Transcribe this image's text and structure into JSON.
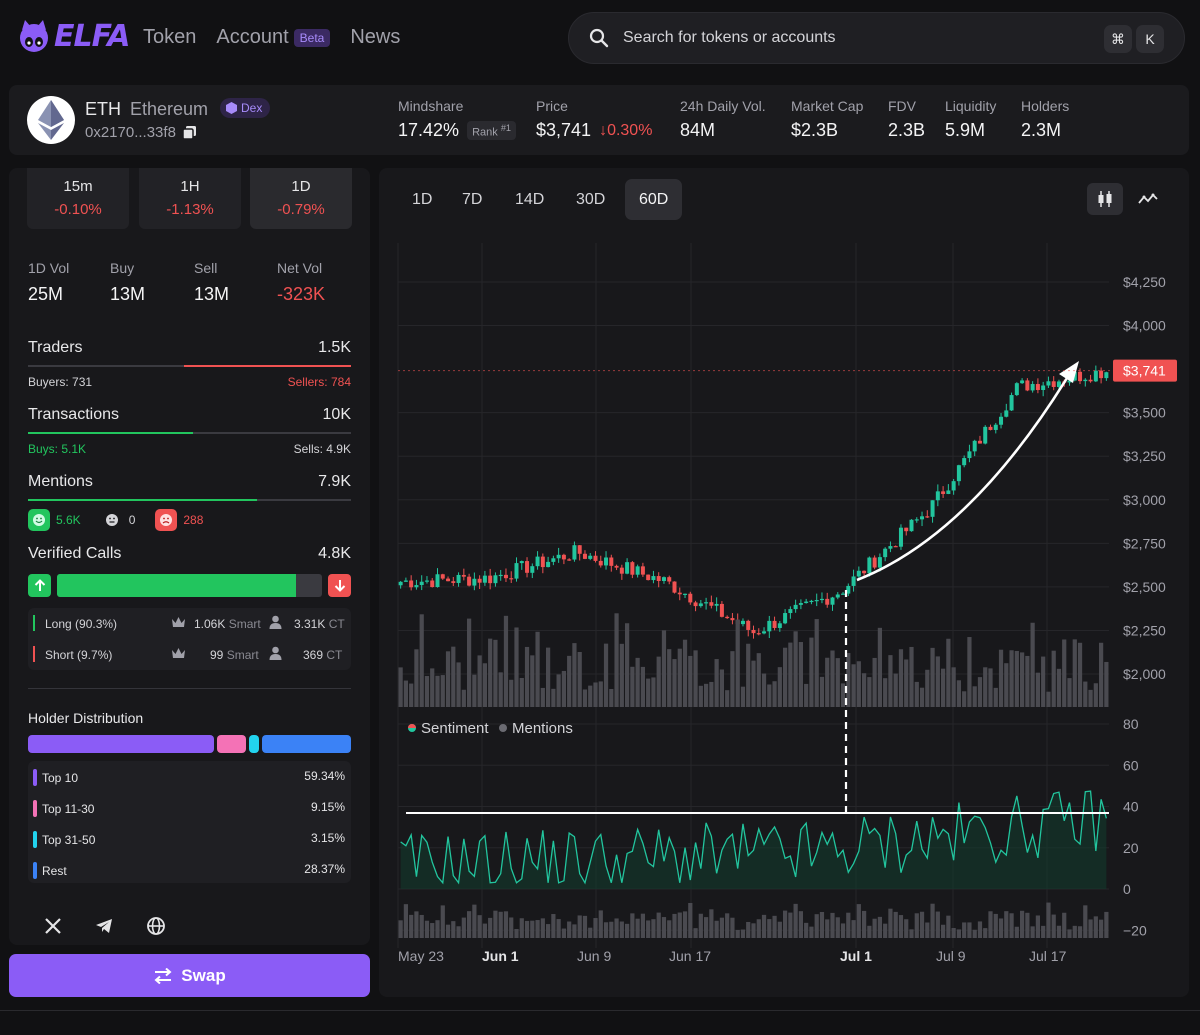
{
  "header": {
    "logo_text": "ELFA",
    "nav": [
      {
        "label": "Token"
      },
      {
        "label": "Account",
        "badge": "Beta"
      },
      {
        "label": "News"
      }
    ],
    "search": {
      "placeholder": "Search for tokens or accounts",
      "shortcut": [
        "⌘",
        "K"
      ]
    }
  },
  "token": {
    "symbol": "ETH",
    "name": "Ethereum",
    "badge": "Dex",
    "address": "0x2170...33f8",
    "stats": [
      {
        "label": "Mindshare",
        "value": "17.42%",
        "rank_label": "Rank",
        "rank": "#1"
      },
      {
        "label": "Price",
        "value": "$3,741",
        "change": "0.30%"
      },
      {
        "label": "24h Daily Vol.",
        "value": "84M"
      },
      {
        "label": "Market Cap",
        "value": "$2.3B"
      },
      {
        "label": "FDV",
        "value": "2.3B"
      },
      {
        "label": "Liquidity",
        "value": "5.9M"
      },
      {
        "label": "Holders",
        "value": "2.3M"
      }
    ]
  },
  "left": {
    "timeframes": [
      {
        "label": "15m",
        "value": "-0.10%"
      },
      {
        "label": "1H",
        "value": "-1.13%"
      },
      {
        "label": "1D",
        "value": "-0.79%"
      }
    ],
    "volume": [
      {
        "label": "1D Vol",
        "value": "25M"
      },
      {
        "label": "Buy",
        "value": "13M"
      },
      {
        "label": "Sell",
        "value": "13M"
      },
      {
        "label": "Net Vol",
        "value": "-323K"
      }
    ],
    "traders": {
      "label": "Traders",
      "value": "1.5K",
      "buyers": "Buyers: 731",
      "sellers": "Sellers: 784",
      "buy_fraction": 0.483
    },
    "transactions": {
      "label": "Transactions",
      "value": "10K",
      "buys": "Buys: 5.1K",
      "sells": "Sells: 4.9K",
      "buy_fraction": 0.51
    },
    "mentions": {
      "label": "Mentions",
      "value": "7.9K",
      "positive": "5.6K",
      "neutral": "0",
      "negative": "288",
      "positive_fraction": 0.71
    },
    "verified_calls": {
      "label": "Verified Calls",
      "value": "4.8K",
      "long_fraction": 0.903,
      "rows": [
        {
          "label": "Long (90.3%)",
          "smart": "1.06K",
          "smart_label": "Smart",
          "ct": "3.31K",
          "ct_label": "CT",
          "color": "#22c55e"
        },
        {
          "label": "Short (9.7%)",
          "smart": "99",
          "smart_label": "Smart",
          "ct": "369",
          "ct_label": "CT",
          "color": "#f05252"
        }
      ]
    },
    "holders": {
      "title": "Holder Distribution",
      "rows": [
        {
          "label": "Top 10",
          "value": "59.34%",
          "color": "#8b5cf6",
          "fraction": 0.5934
        },
        {
          "label": "Top 11-30",
          "value": "9.15%",
          "color": "#f472b6",
          "fraction": 0.0915
        },
        {
          "label": "Top 31-50",
          "value": "3.15%",
          "color": "#22d3ee",
          "fraction": 0.0315
        },
        {
          "label": "Rest",
          "value": "28.37%",
          "color": "#3b82f6",
          "fraction": 0.2837
        }
      ]
    },
    "swap_label": "Swap"
  },
  "chart": {
    "ranges": [
      "1D",
      "7D",
      "14D",
      "30D",
      "60D"
    ],
    "active_range": "60D",
    "price_ticks": [
      "$4,250",
      "$4,000",
      "$3,500",
      "$3,250",
      "$3,000",
      "$2,750",
      "$2,500",
      "$2,250",
      "$2,000"
    ],
    "sentiment_ticks": [
      "80",
      "60",
      "40",
      "20",
      "0",
      "−20"
    ],
    "x_ticks": [
      {
        "label": "May 23",
        "bold": false
      },
      {
        "label": "Jun 1",
        "bold": true
      },
      {
        "label": "Jun 9",
        "bold": false
      },
      {
        "label": "Jun 17",
        "bold": false
      },
      {
        "label": "Jul 1",
        "bold": true
      },
      {
        "label": "Jul 9",
        "bold": false
      },
      {
        "label": "Jul 17",
        "bold": false
      }
    ],
    "current_price_label": "$3,741",
    "legend": [
      {
        "label": "Sentiment"
      },
      {
        "label": "Mentions"
      }
    ],
    "colors": {
      "up": "#22c59e",
      "down": "#f05252",
      "accent": "#8b5cf6"
    }
  },
  "chart_data": {
    "type": "candlestick",
    "x_range": [
      "May 23",
      "Jul 23"
    ],
    "price_axis": {
      "min": 2000,
      "max": 4250
    },
    "sentiment_axis": {
      "min": -20,
      "max": 80
    },
    "anchor_points": [
      {
        "x": "May 23",
        "price": 2530
      },
      {
        "x": "Jun 1",
        "price": 2550
      },
      {
        "x": "Jun 9",
        "price": 2700
      },
      {
        "x": "Jun 17",
        "price": 2530
      },
      {
        "x": "Jun 24",
        "price": 2240
      },
      {
        "x": "Jul 1",
        "price": 2480
      },
      {
        "x": "Jul 9",
        "price": 2950
      },
      {
        "x": "Jul 17",
        "price": 3650
      },
      {
        "x": "Jul 23",
        "price": 3741
      }
    ]
  }
}
